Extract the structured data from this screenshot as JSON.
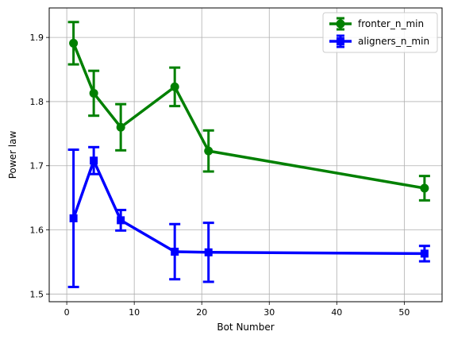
{
  "chart_data": {
    "type": "line",
    "title": "",
    "xlabel": "Bot Number",
    "ylabel": "Power law",
    "xlim": [
      -2.6,
      55.6
    ],
    "ylim": [
      1.488,
      1.946
    ],
    "xticks": [
      0,
      10,
      20,
      30,
      40,
      50
    ],
    "yticks": [
      1.5,
      1.6,
      1.7,
      1.8,
      1.9
    ],
    "grid": true,
    "legend_position": "top-right",
    "series": [
      {
        "name": "fronter_n_min",
        "color": "#008000",
        "marker": "circle",
        "x": [
          1,
          4,
          8,
          16,
          21,
          53
        ],
        "y": [
          1.891,
          1.813,
          1.76,
          1.823,
          1.723,
          1.665
        ],
        "err": [
          0.033,
          0.035,
          0.036,
          0.03,
          0.032,
          0.019
        ]
      },
      {
        "name": "aligners_n_min",
        "color": "#0000ff",
        "marker": "square",
        "x": [
          1,
          4,
          8,
          16,
          21,
          53
        ],
        "y": [
          1.618,
          1.708,
          1.615,
          1.566,
          1.565,
          1.563
        ],
        "err": [
          0.107,
          0.021,
          0.016,
          0.043,
          0.046,
          0.012
        ]
      }
    ]
  }
}
